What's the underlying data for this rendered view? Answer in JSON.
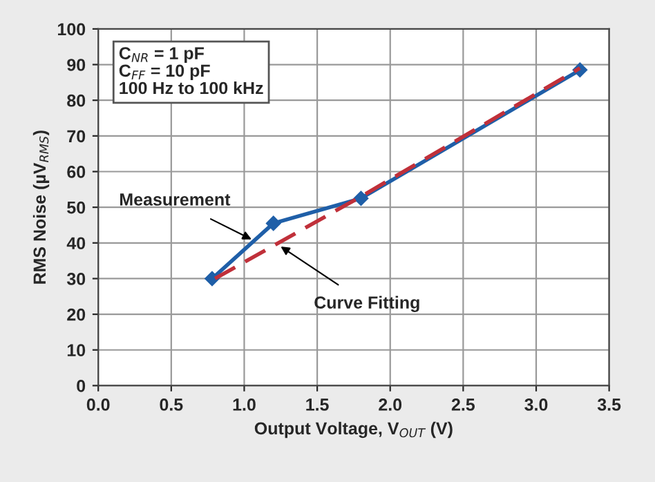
{
  "chart_data": {
    "type": "line",
    "xlabel": "Output Voltage, V$_{OUT}$ (V)",
    "ylabel": "RMS Noise (µV$_{RMS}$)",
    "series": [
      {
        "color": "#1f5fa8",
        "x": [
          0.78,
          1.2,
          1.8,
          3.3
        ],
        "values": [
          30,
          45.5,
          52.5,
          88.5
        ],
        "marker": "diamond",
        "line_style": "solid"
      },
      {
        "color": "#c0303a",
        "x": [
          0.8,
          1.8,
          3.3
        ],
        "values": [
          30,
          53,
          89
        ],
        "marker": "none",
        "line_style": "dashed"
      }
    ],
    "annotations": [
      "C$_{NR}$ = 1 pF\nC$_{FF}$ = 10 pF\n100 Hz to 100 kHz",
      {
        "text": "Measurement",
        "x": 1.05,
        "y": 41
      },
      {
        "text": "Curve Fitting",
        "x": 1.25,
        "y": 39
      }
    ],
    "xlim": [
      0.0,
      3.5
    ],
    "xticks": [
      {
        "value": 0,
        "label": "0.0"
      },
      0.5,
      {
        "value": 1,
        "label": "1.0"
      },
      1.5,
      {
        "value": 2,
        "label": "2.0"
      },
      2.5,
      {
        "value": 3,
        "label": "3.0"
      },
      3.5
    ],
    "ylim": [
      0,
      100
    ],
    "yticks": [
      0,
      10,
      20,
      30,
      40,
      50,
      60,
      70,
      80,
      90,
      100
    ],
    "grid": true
  }
}
